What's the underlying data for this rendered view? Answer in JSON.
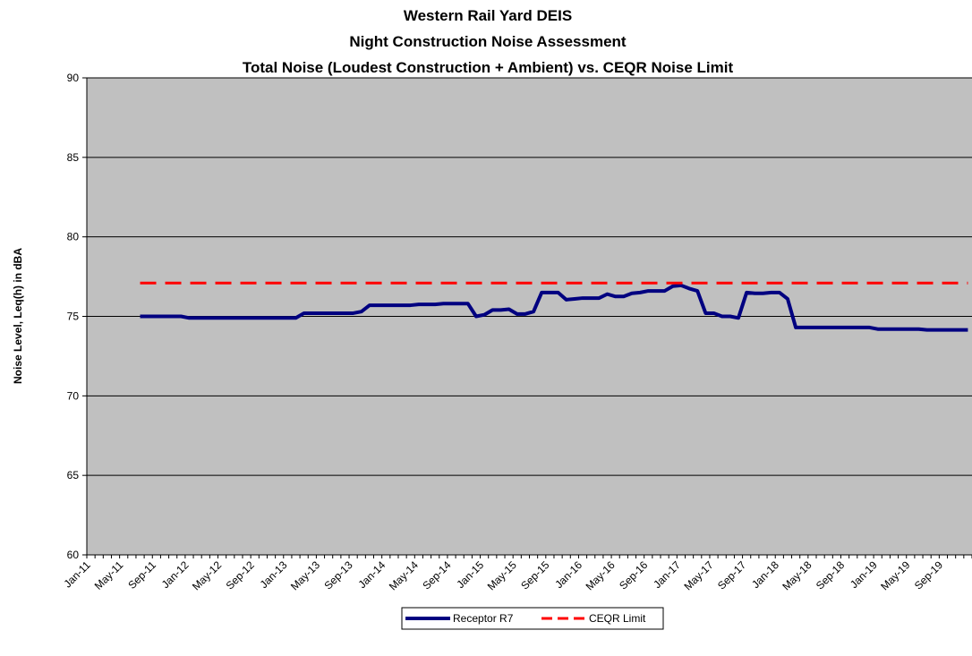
{
  "chart_data": {
    "type": "line",
    "title": [
      "Western Rail Yard DEIS",
      "Night Construction Noise Assessment",
      "Total Noise (Loudest Construction + Ambient) vs. CEQR Noise Limit"
    ],
    "y_label": "Noise Level, Leq(h) in dBA",
    "categories": [
      "Jan-11",
      null,
      null,
      null,
      "May-11",
      null,
      null,
      null,
      "Sep-11",
      null,
      null,
      null,
      "Jan-12",
      null,
      null,
      null,
      "May-12",
      null,
      null,
      null,
      "Sep-12",
      null,
      null,
      null,
      "Jan-13",
      null,
      null,
      null,
      "May-13",
      null,
      null,
      null,
      "Sep-13",
      null,
      null,
      null,
      "Jan-14",
      null,
      null,
      null,
      "May-14",
      null,
      null,
      null,
      "Sep-14",
      null,
      null,
      null,
      "Jan-15",
      null,
      null,
      null,
      "May-15",
      null,
      null,
      null,
      "Sep-15",
      null,
      null,
      null,
      "Jan-16",
      null,
      null,
      null,
      "May-16",
      null,
      null,
      null,
      "Sep-16",
      null,
      null,
      null,
      "Jan-17",
      null,
      null,
      null,
      "May-17",
      null,
      null,
      null,
      "Sep-17",
      null,
      null,
      null,
      "Jan-18",
      null,
      null,
      null,
      "May-18",
      null,
      null,
      null,
      "Sep-18",
      null,
      null,
      null,
      "Jan-19",
      null,
      null,
      null,
      "May-19",
      null,
      null,
      null,
      "Sep-19",
      null,
      null,
      null
    ],
    "series": [
      {
        "name": "Receptor R7",
        "color": "#000080",
        "dashed": false,
        "values": [
          null,
          null,
          null,
          null,
          null,
          null,
          75.0,
          75.0,
          75.0,
          75.0,
          75.0,
          75.0,
          74.9,
          74.9,
          74.9,
          74.9,
          74.9,
          74.9,
          74.9,
          74.9,
          74.9,
          74.9,
          74.9,
          74.9,
          74.9,
          74.9,
          75.2,
          75.2,
          75.2,
          75.2,
          75.2,
          75.2,
          75.2,
          75.3,
          75.7,
          75.7,
          75.7,
          75.7,
          75.7,
          75.7,
          75.75,
          75.75,
          75.75,
          75.8,
          75.8,
          75.8,
          75.8,
          75.0,
          75.1,
          75.4,
          75.4,
          75.45,
          75.15,
          75.15,
          75.3,
          76.5,
          76.5,
          76.5,
          76.05,
          76.1,
          76.15,
          76.15,
          76.15,
          76.4,
          76.25,
          76.25,
          76.45,
          76.5,
          76.6,
          76.6,
          76.6,
          76.9,
          76.95,
          76.75,
          76.6,
          75.2,
          75.2,
          75.0,
          75.0,
          74.9,
          76.5,
          76.45,
          76.45,
          76.5,
          76.5,
          76.1,
          74.3,
          74.3,
          74.3,
          74.3,
          74.3,
          74.3,
          74.3,
          74.3,
          74.3,
          74.3,
          74.2,
          74.2,
          74.2,
          74.2,
          74.2,
          74.2,
          74.15,
          74.15,
          74.15,
          74.15,
          74.15,
          74.15
        ]
      },
      {
        "name": "CEQR Limit",
        "color": "#ff0000",
        "dashed": true,
        "values": [
          null,
          null,
          null,
          null,
          null,
          null,
          77.1,
          77.1,
          77.1,
          77.1,
          77.1,
          77.1,
          77.1,
          77.1,
          77.1,
          77.1,
          77.1,
          77.1,
          77.1,
          77.1,
          77.1,
          77.1,
          77.1,
          77.1,
          77.1,
          77.1,
          77.1,
          77.1,
          77.1,
          77.1,
          77.1,
          77.1,
          77.1,
          77.1,
          77.1,
          77.1,
          77.1,
          77.1,
          77.1,
          77.1,
          77.1,
          77.1,
          77.1,
          77.1,
          77.1,
          77.1,
          77.1,
          77.1,
          77.1,
          77.1,
          77.1,
          77.1,
          77.1,
          77.1,
          77.1,
          77.1,
          77.1,
          77.1,
          77.1,
          77.1,
          77.1,
          77.1,
          77.1,
          77.1,
          77.1,
          77.1,
          77.1,
          77.1,
          77.1,
          77.1,
          77.1,
          77.1,
          77.1,
          77.1,
          77.1,
          77.1,
          77.1,
          77.1,
          77.1,
          77.1,
          77.1,
          77.1,
          77.1,
          77.1,
          77.1,
          77.1,
          77.1,
          77.1,
          77.1,
          77.1,
          77.1,
          77.1,
          77.1,
          77.1,
          77.1,
          77.1,
          77.1,
          77.1,
          77.1,
          77.1,
          77.1,
          77.1,
          77.1,
          77.1,
          77.1,
          77.1,
          77.1,
          77.1
        ]
      }
    ],
    "ylim": [
      60,
      90
    ],
    "yticks": [
      60,
      65,
      70,
      75,
      80,
      85,
      90
    ],
    "grid": true,
    "plot_background": "#c0c0c0",
    "legend": "bottom"
  }
}
